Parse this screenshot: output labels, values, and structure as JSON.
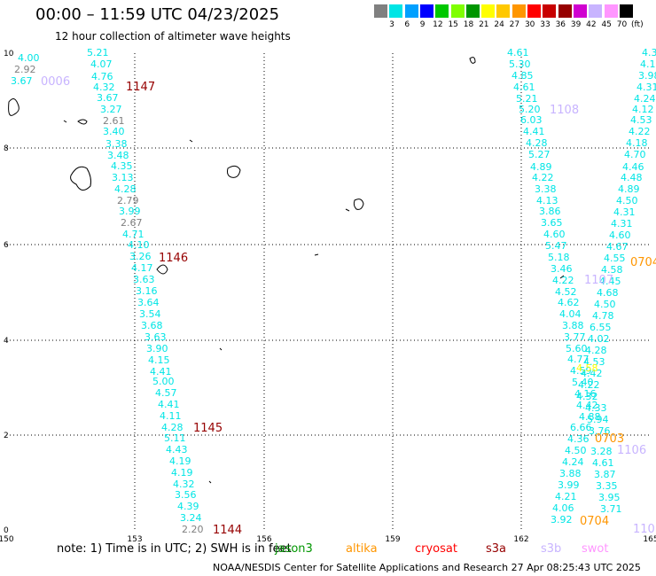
{
  "title": "00:00 – 11:59 UTC 04/23/2025",
  "subtitle": "12 hour collection of altimeter wave heights",
  "colorbar": {
    "colors": [
      "#808080",
      "#00e5e5",
      "#00a0ff",
      "#0000ff",
      "#00c800",
      "#80ff00",
      "#009600",
      "#ffff00",
      "#ffc800",
      "#ff9600",
      "#ff0000",
      "#c80000",
      "#960000",
      "#d000d0",
      "#c8b4ff",
      "#ff96ff",
      "#000000"
    ],
    "labels": [
      "3",
      "6",
      "9",
      "12",
      "15",
      "18",
      "21",
      "24",
      "27",
      "30",
      "33",
      "36",
      "39",
      "42",
      "45",
      "70",
      "(ft)"
    ]
  },
  "axes": {
    "x_ticks": [
      "150",
      "153",
      "156",
      "159",
      "162",
      "165"
    ],
    "y_ticks": [
      "0",
      "2",
      "4",
      "6",
      "8",
      "10"
    ]
  },
  "tracks": [
    {
      "color": "#00e5e5",
      "labels": [
        "4.00",
        "5.21",
        "4.07",
        "4.76",
        "4.32",
        "3.67",
        "3.27",
        "3.40",
        "3.38",
        "3.48",
        "4.35",
        "3.13",
        "4.28",
        "3.99",
        "4.71",
        "4.10",
        "3.26",
        "4.17",
        "3.63",
        "3.16",
        "3.64",
        "3.54",
        "3.68",
        "3.63",
        "3.90",
        "4.15",
        "4.41",
        "5.00",
        "4.57",
        "4.41",
        "4.11",
        "4.28",
        "5.11",
        "4.43",
        "4.19",
        "4.19",
        "4.32",
        "3.56",
        "4.39",
        "3.24"
      ]
    },
    {
      "color": "#808080",
      "labels": [
        "2.92",
        "2.61",
        "2.79",
        "2.67",
        "2.20"
      ]
    },
    {
      "color": "#00e5e5",
      "labels": [
        "3.67"
      ]
    },
    {
      "color": "#00e5e5",
      "labels": [
        "4.61",
        "5.30",
        "4.85",
        "4.61",
        "5.21",
        "5.20",
        "6.03",
        "4.41",
        "4.28",
        "5.27",
        "4.89",
        "4.22",
        "3.38",
        "4.13",
        "3.86",
        "3.65",
        "4.60",
        "5.47",
        "5.18",
        "3.46",
        "4.22",
        "4.52",
        "4.62",
        "4.04",
        "3.88",
        "3.77",
        "5.60",
        "4.77",
        "4.59",
        "5.40",
        "4.16",
        "4.42",
        "4.88",
        "6.66",
        "4.36",
        "4.50",
        "4.24",
        "3.88",
        "3.99",
        "4.21",
        "4.06",
        "3.92",
        "4.07"
      ]
    },
    {
      "color": "#00e5e5",
      "labels": [
        "4.3",
        "4.1",
        "3.98",
        "4.31",
        "4.24",
        "4.12",
        "4.53",
        "4.22",
        "4.18",
        "4.70",
        "4.46",
        "4.48",
        "4.89",
        "4.50",
        "4.31",
        "4.31",
        "4.60",
        "4.67",
        "4.55",
        "4.58",
        "4.45",
        "4.68",
        "4.50",
        "4.78",
        "6.55",
        "4.02",
        "4.28",
        "4.53",
        "4.42",
        "4.22",
        "4.32",
        "4.33",
        "5.94",
        "3.76",
        "3.28",
        "4.61",
        "3.87",
        "3.35",
        "3.95",
        "3.71"
      ]
    },
    {
      "color": "#ffff00",
      "labels": [
        "4.58"
      ]
    }
  ],
  "pass_labels": [
    {
      "text": "1147",
      "color": "#960000"
    },
    {
      "text": "1146",
      "color": "#960000"
    },
    {
      "text": "1145",
      "color": "#960000"
    },
    {
      "text": "1144",
      "color": "#960000"
    },
    {
      "text": "0006",
      "color": "#c8b4ff"
    },
    {
      "text": "1108",
      "color": "#c8b4ff"
    },
    {
      "text": "1107",
      "color": "#c8b4ff"
    },
    {
      "text": "1106",
      "color": "#c8b4ff"
    },
    {
      "text": "110",
      "color": "#c8b4ff"
    },
    {
      "text": "0704",
      "color": "#ff9600"
    },
    {
      "text": "0703",
      "color": "#ff9600"
    },
    {
      "text": "0704",
      "color": "#ff9600"
    }
  ],
  "note": "note: 1) Time is in UTC; 2) SWH is in feet",
  "satellites": [
    {
      "name": "jason3",
      "color": "#009600"
    },
    {
      "name": "altika",
      "color": "#ff9600"
    },
    {
      "name": "cryosat",
      "color": "#ff0000"
    },
    {
      "name": "s3a",
      "color": "#960000"
    },
    {
      "name": "s3b",
      "color": "#c8b4ff"
    },
    {
      "name": "swot",
      "color": "#ff96ff"
    }
  ],
  "credit": "NOAA/NESDIS Center for Satellite Applications and Research   27 Apr 08:25:43 UTC 2025"
}
